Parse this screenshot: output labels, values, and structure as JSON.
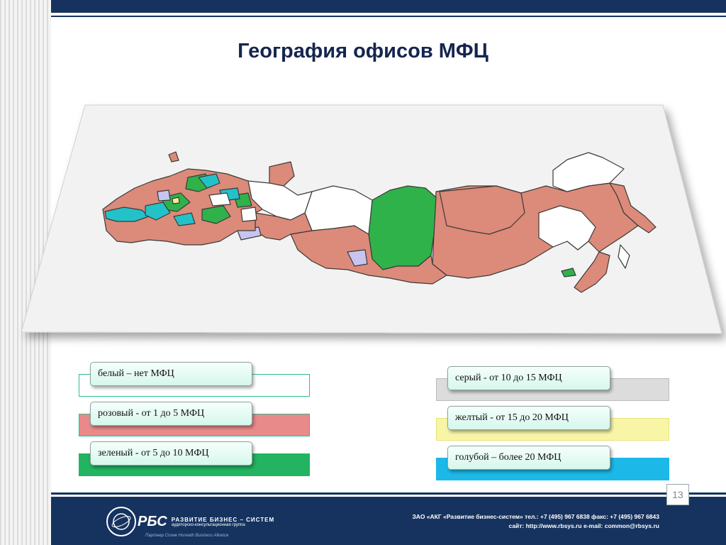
{
  "slide": {
    "title": "География офисов МФЦ",
    "page_number": "13"
  },
  "colors": {
    "header_navy": "#16335f",
    "region_pink": "#dc8a79",
    "region_green": "#2fb24a",
    "region_teal": "#22c2c8",
    "region_lavender": "#c7c5f0",
    "region_yellow": "#f4f09a",
    "region_white": "#ffffff"
  },
  "legend": {
    "white": {
      "label": "белый – нет МФЦ",
      "color": "#ffffff"
    },
    "pink": {
      "label": "розовый - от 1 до 5 МФЦ",
      "color": "#e88a8a"
    },
    "green": {
      "label": "зеленый - от 5 до 10 МФЦ",
      "color": "#22b460"
    },
    "gray": {
      "label": "серый - от 10 до 15 МФЦ",
      "color": "#dcdcdc"
    },
    "yellow": {
      "label": "желтый - от 15 до 20 МФЦ",
      "color": "#f8f6a6"
    },
    "blue": {
      "label": "голубой – более 20 МФЦ",
      "color": "#1cb8e8"
    }
  },
  "footer": {
    "logo_short": "РБС",
    "logo_name": "РАЗВИТИЕ БИЗНЕС – СИСТЕМ",
    "logo_sub": "аудиторско-консультационная группа",
    "logo_partner": "Партнер Crowe Horwath Business Alliance",
    "contact_line1": "ЗАО «АКГ «Развитие бизнес-систем»  тел.: +7 (495) 967 6838   факс: +7 (495) 967 6843",
    "contact_line2": "сайт: http://www.rbsys.ru    e-mail: common@rbsys.ru"
  }
}
